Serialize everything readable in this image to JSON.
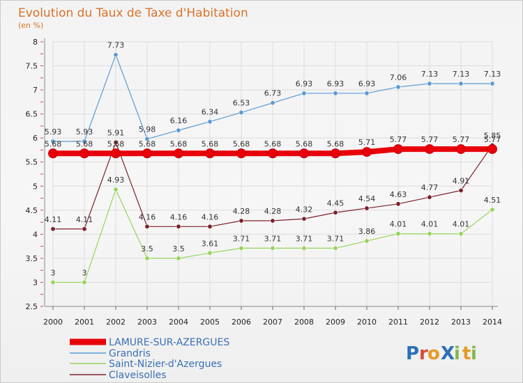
{
  "chart_data": {
    "type": "line",
    "title": "Evolution du Taux de Taxe d'Habitation",
    "subtitle": "(en %)",
    "xlabel": "",
    "ylabel": "",
    "x": [
      "2000",
      "2001",
      "2002",
      "2003",
      "2004",
      "2005",
      "2006",
      "2007",
      "2008",
      "2009",
      "2010",
      "2011",
      "2012",
      "2013",
      "2014"
    ],
    "ylim": [
      2.5,
      8
    ],
    "yticks": [
      "2.5",
      "3",
      "3.5",
      "4",
      "4.5",
      "5",
      "5.5",
      "6",
      "6.5",
      "7",
      "7.5",
      "8"
    ],
    "grid": true,
    "legend_position": "bottom-left",
    "series": [
      {
        "name": "LAMURE-SUR-AZERGUES",
        "color": "#e8000b",
        "values": [
          5.68,
          5.68,
          5.68,
          5.68,
          5.68,
          5.68,
          5.68,
          5.68,
          5.68,
          5.68,
          5.71,
          5.77,
          5.77,
          5.77,
          5.77
        ],
        "labels": [
          "5.68",
          "5.68",
          "5.68",
          "5.68",
          "5.68",
          "5.68",
          "5.68",
          "5.68",
          "5.68",
          "5.68",
          "5.71",
          "5.77",
          "5.77",
          "5.77",
          "5.77"
        ]
      },
      {
        "name": "Grandris",
        "color": "#5b9ad4",
        "values": [
          5.93,
          5.93,
          7.73,
          5.98,
          6.16,
          6.34,
          6.53,
          6.73,
          6.93,
          6.93,
          6.93,
          7.06,
          7.13,
          7.13,
          7.13
        ],
        "labels": [
          "5.93",
          "5.93",
          "7.73",
          "5.98",
          "6.16",
          "6.34",
          "6.53",
          "6.73",
          "6.93",
          "6.93",
          "6.93",
          "7.06",
          "7.13",
          "7.13",
          "7.13"
        ]
      },
      {
        "name": "Saint-Nizier-d'Azergues",
        "color": "#97d45a",
        "values": [
          3,
          3,
          4.93,
          3.5,
          3.5,
          3.61,
          3.71,
          3.71,
          3.71,
          3.71,
          3.86,
          4.01,
          4.01,
          4.01,
          4.51
        ],
        "labels": [
          "3",
          "3",
          "4.93",
          "3.5",
          "3.5",
          "3.61",
          "3.71",
          "3.71",
          "3.71",
          "3.71",
          "3.86",
          "4.01",
          "4.01",
          "4.01",
          "4.51"
        ]
      },
      {
        "name": "Claveisolles",
        "color": "#7b2129",
        "values": [
          4.11,
          4.11,
          5.91,
          4.16,
          4.16,
          4.16,
          4.28,
          4.28,
          4.32,
          4.45,
          4.54,
          4.63,
          4.77,
          4.91,
          5.85
        ],
        "labels": [
          "4.11",
          "4.11",
          "5.91",
          "4.16",
          "4.16",
          "4.16",
          "4.28",
          "4.28",
          "4.32",
          "4.45",
          "4.54",
          "4.63",
          "4.77",
          "4.91",
          "5.85"
        ]
      }
    ]
  },
  "logo": {
    "text": "ProXiti",
    "letters": [
      {
        "ch": "P",
        "color": "#2a6fb7"
      },
      {
        "ch": "r",
        "color": "#d94b3b"
      },
      {
        "ch": "o",
        "color": "#e59a23"
      },
      {
        "ch": "X",
        "color": "#2a6fb7"
      },
      {
        "ch": "i",
        "color": "#82b84a"
      },
      {
        "ch": "t",
        "color": "#e59a23"
      },
      {
        "ch": "i",
        "color": "#82b84a"
      }
    ]
  }
}
